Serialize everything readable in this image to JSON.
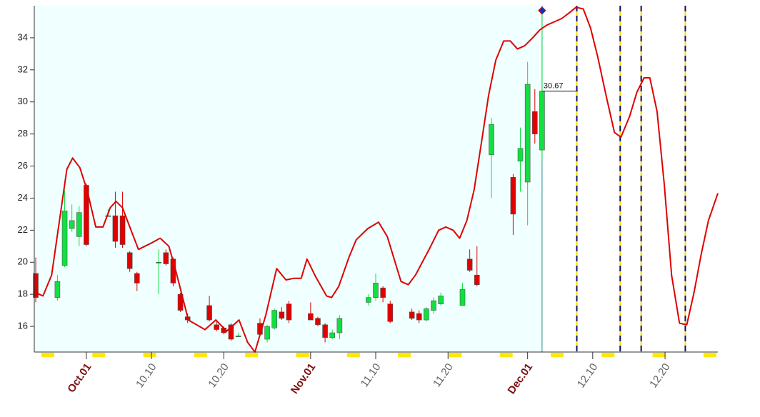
{
  "chart_data": {
    "type": "candlestick",
    "xlim": [
      -0.2,
      94.3
    ],
    "ylim": [
      14.4,
      36
    ],
    "yticks": [
      16,
      18,
      20,
      22,
      24,
      26,
      28,
      30,
      32,
      34
    ],
    "xticks": [
      {
        "value": 7,
        "label": "Oct.01"
      },
      {
        "value": 16,
        "label": "10.10"
      },
      {
        "value": 26,
        "label": "10.20"
      },
      {
        "value": 38,
        "label": "Nov.01"
      },
      {
        "value": 47,
        "label": "11.10"
      },
      {
        "value": 57,
        "label": "11.20"
      },
      {
        "value": 68,
        "label": "Dec.01"
      },
      {
        "value": 77,
        "label": "12.10"
      },
      {
        "value": 87,
        "label": "12.20"
      }
    ],
    "up_color": "#10e040",
    "down_color": "#e00000",
    "candles": {
      "x": [
        0,
        3,
        4,
        5,
        6,
        7,
        10,
        11,
        12,
        13,
        14,
        17,
        18,
        19,
        20,
        21,
        24,
        25,
        26,
        27,
        28,
        31,
        32,
        33,
        34,
        35,
        38,
        39,
        40,
        41,
        42,
        46,
        47,
        48,
        49,
        52,
        53,
        54,
        55,
        56,
        59,
        60,
        61,
        63,
        66,
        67,
        68,
        69,
        70
      ],
      "open": [
        19.3,
        17.8,
        19.8,
        22.1,
        21.6,
        24.8,
        22.9,
        22.9,
        22.9,
        20.6,
        19.3,
        20.0,
        20.6,
        20.2,
        18.0,
        16.6,
        17.3,
        16.1,
        15.9,
        16.1,
        15.4,
        16.2,
        15.2,
        15.9,
        16.9,
        17.4,
        16.8,
        16.5,
        16.1,
        15.3,
        15.6,
        17.5,
        17.8,
        18.4,
        17.4,
        16.9,
        16.8,
        16.4,
        17.0,
        17.4,
        17.3,
        20.2,
        19.2,
        26.7,
        25.3,
        26.3,
        25.0,
        29.4,
        27.0
      ],
      "high": [
        20.3,
        19.2,
        24.5,
        23.6,
        23.5,
        24.9,
        23.3,
        24.4,
        24.4,
        20.7,
        19.4,
        20.8,
        20.8,
        20.3,
        18.1,
        16.8,
        17.9,
        16.3,
        16.0,
        16.2,
        15.6,
        16.5,
        16.1,
        17.1,
        17.2,
        17.6,
        17.5,
        16.6,
        16.2,
        15.8,
        16.7,
        18.0,
        19.3,
        18.5,
        17.6,
        17.1,
        17.0,
        17.2,
        17.8,
        18.1,
        18.7,
        20.8,
        21.0,
        29.0,
        25.5,
        28.4,
        32.5,
        30.8,
        35.7
      ],
      "low": [
        17.5,
        17.6,
        19.7,
        21.9,
        21.0,
        21.0,
        22.9,
        20.9,
        20.9,
        19.4,
        18.2,
        18.0,
        19.8,
        18.5,
        16.9,
        16.2,
        16.3,
        15.7,
        15.5,
        15.1,
        15.4,
        15.4,
        15.0,
        15.8,
        16.4,
        16.2,
        16.4,
        16.0,
        15.0,
        15.2,
        15.2,
        17.3,
        17.6,
        17.5,
        16.2,
        16.4,
        16.2,
        16.3,
        16.8,
        17.3,
        17.3,
        19.4,
        18.5,
        24.0,
        21.7,
        24.4,
        22.3,
        27.4,
        26.3
      ],
      "close": [
        17.8,
        18.8,
        23.2,
        22.6,
        23.1,
        21.1,
        22.9,
        21.3,
        21.1,
        19.6,
        18.7,
        20.0,
        19.9,
        18.7,
        17.0,
        16.4,
        16.4,
        15.8,
        15.6,
        15.2,
        15.4,
        15.5,
        16.0,
        17.0,
        16.5,
        16.4,
        16.4,
        16.1,
        15.3,
        15.6,
        16.5,
        17.8,
        18.7,
        17.8,
        16.3,
        16.5,
        16.4,
        17.1,
        17.6,
        17.9,
        18.3,
        19.5,
        18.6,
        28.6,
        23.0,
        27.1,
        31.1,
        28.0,
        30.67
      ]
    },
    "line": {
      "color": "#e00000",
      "x": [
        0,
        1.0,
        2.2,
        4.3,
        5.1,
        6.1,
        7.1,
        8.3,
        9.3,
        10.3,
        11.1,
        12.0,
        13.0,
        14.2,
        16.0,
        17.2,
        18.4,
        19.4,
        21.1,
        23.4,
        24.9,
        26.4,
        28.1,
        29.3,
        30.3,
        31.8,
        33.3,
        34.6,
        35.7,
        36.7,
        37.5,
        38.7,
        40.2,
        40.9,
        41.9,
        43.3,
        44.3,
        45.9,
        47.4,
        48.6,
        50.5,
        51.5,
        52.5,
        54.5,
        55.7,
        56.7,
        57.7,
        58.6,
        59.6,
        60.6,
        61.6,
        62.6,
        63.6,
        64.7,
        65.6,
        66.6,
        67.6,
        68.7,
        69.7,
        70.7,
        71.7,
        72.7,
        73.6,
        74.7,
        75.7,
        76.7,
        77.7,
        78.9,
        80.0,
        80.9,
        82.1,
        83.1,
        84.1,
        84.9,
        85.9,
        86.9,
        87.9,
        89.0,
        90.0,
        91.0,
        92.0,
        93.0,
        94.3
      ],
      "values": [
        18.1,
        17.9,
        19.2,
        25.8,
        26.5,
        25.9,
        24.5,
        22.2,
        22.2,
        23.4,
        23.8,
        23.4,
        22.2,
        20.8,
        21.2,
        21.5,
        21.0,
        19.4,
        16.4,
        15.8,
        16.4,
        15.7,
        16.4,
        15.0,
        14.4,
        16.7,
        19.6,
        18.9,
        19.0,
        19.0,
        20.2,
        19.1,
        17.9,
        17.8,
        18.5,
        20.3,
        21.4,
        22.1,
        22.5,
        21.6,
        18.8,
        18.6,
        19.2,
        20.9,
        22.0,
        22.2,
        22.0,
        21.5,
        22.6,
        24.5,
        27.4,
        30.4,
        32.6,
        33.8,
        33.8,
        33.3,
        33.5,
        34.0,
        34.5,
        34.8,
        35.0,
        35.2,
        35.5,
        35.9,
        35.8,
        34.6,
        32.8,
        30.3,
        28.1,
        27.8,
        29.1,
        30.6,
        31.5,
        31.5,
        29.4,
        24.8,
        19.2,
        16.2,
        16.1,
        18.1,
        20.5,
        22.6,
        24.3
      ]
    },
    "markers": [
      74.8,
      80.8,
      83.7,
      89.8
    ]
  }
}
